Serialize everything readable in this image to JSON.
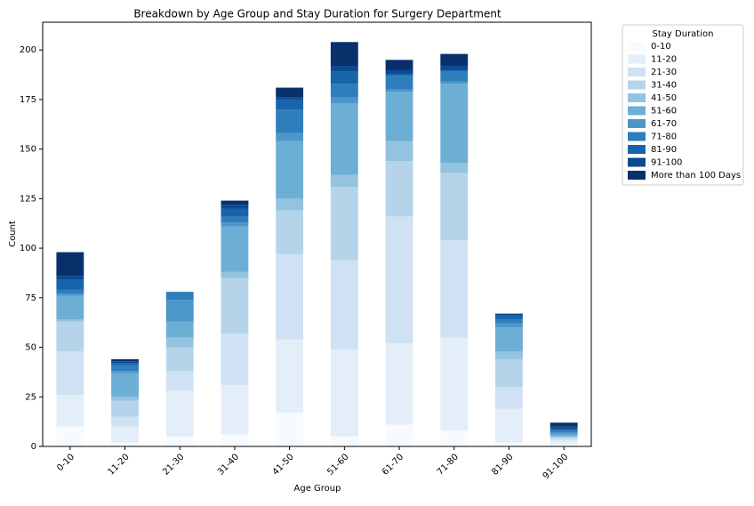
{
  "chart_data": {
    "type": "stacked-bar",
    "title": "Breakdown by Age Group and Stay Duration for Surgery Department",
    "x_label": "Age Group",
    "y_label": "Count",
    "legend_title": "Stay Duration",
    "categories": [
      "0-10",
      "11-20",
      "21-30",
      "31-40",
      "41-50",
      "51-60",
      "61-70",
      "71-80",
      "81-90",
      "91-100"
    ],
    "series": [
      {
        "name": "0-10",
        "color": "#f7fbff",
        "values": [
          10,
          2,
          5,
          6,
          17,
          5,
          11,
          8,
          2,
          1
        ]
      },
      {
        "name": "11-20",
        "color": "#e3eef9",
        "values": [
          16,
          8,
          23,
          25,
          37,
          44,
          41,
          47,
          17,
          2
        ]
      },
      {
        "name": "21-30",
        "color": "#cfe1f2",
        "values": [
          22,
          5,
          10,
          26,
          43,
          45,
          64,
          49,
          11,
          1
        ]
      },
      {
        "name": "31-40",
        "color": "#b5d4e9",
        "values": [
          15,
          8,
          12,
          28,
          22,
          37,
          28,
          34,
          14,
          1
        ]
      },
      {
        "name": "41-50",
        "color": "#93c3df",
        "values": [
          1,
          2,
          5,
          3,
          6,
          6,
          10,
          5,
          4,
          0
        ]
      },
      {
        "name": "51-60",
        "color": "#6daed5",
        "values": [
          12,
          12,
          8,
          23,
          29,
          36,
          25,
          40,
          12,
          1
        ]
      },
      {
        "name": "61-70",
        "color": "#4b97c9",
        "values": [
          1,
          1,
          11,
          2,
          4,
          3,
          1,
          1,
          2,
          1
        ]
      },
      {
        "name": "71-80",
        "color": "#2f7ebc",
        "values": [
          2,
          3,
          4,
          3,
          12,
          7,
          7,
          5,
          2,
          1
        ]
      },
      {
        "name": "81-90",
        "color": "#1864aa",
        "values": [
          5,
          1,
          0,
          4,
          5,
          6,
          1,
          1,
          2,
          1
        ]
      },
      {
        "name": "91-100",
        "color": "#0a4a90",
        "values": [
          2,
          1,
          0,
          2,
          1,
          3,
          2,
          2,
          1,
          1
        ]
      },
      {
        "name": "More than 100 Days",
        "color": "#08306b",
        "values": [
          12,
          1,
          0,
          2,
          5,
          12,
          5,
          6,
          0,
          2
        ]
      }
    ],
    "ylim": [
      0,
      214
    ],
    "yticks": [
      0,
      25,
      50,
      75,
      100,
      125,
      150,
      175,
      200
    ]
  }
}
